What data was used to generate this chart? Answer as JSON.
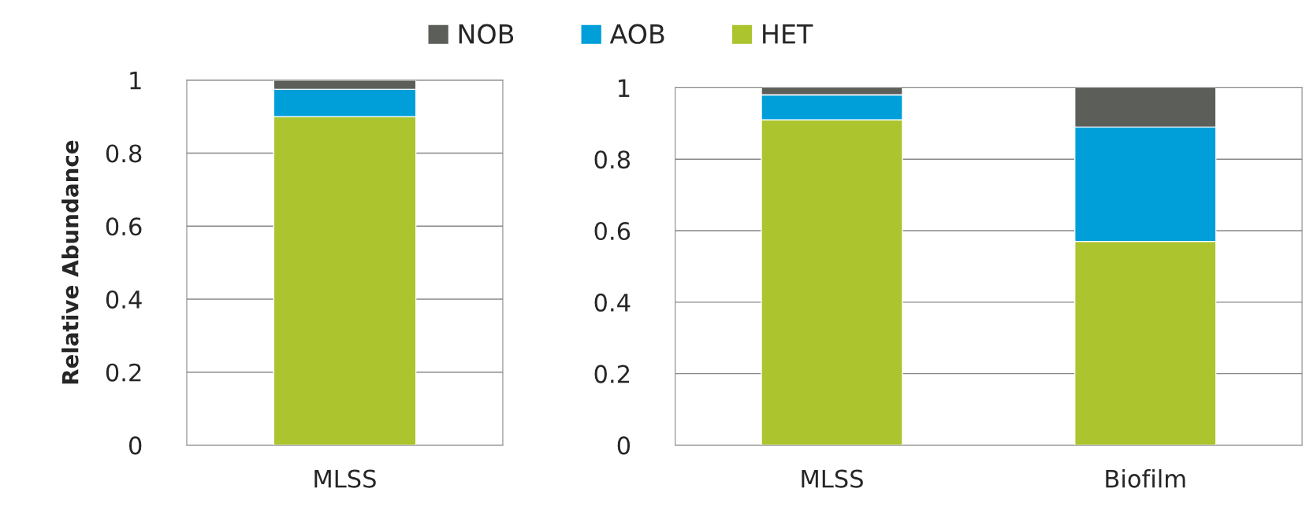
{
  "chart_data": [
    {
      "type": "bar",
      "stacked": true,
      "categories": [
        "MLSS"
      ],
      "ylabel": "Relative Abundance",
      "ylim": [
        0,
        1
      ],
      "yticks": [
        0,
        0.2,
        0.4,
        0.6,
        0.8,
        1
      ],
      "grid": "y",
      "legend": "top",
      "series": [
        {
          "name": "HET",
          "color": "#acc42e",
          "values": [
            0.9
          ]
        },
        {
          "name": "AOB",
          "color": "#009fd9",
          "values": [
            0.075
          ]
        },
        {
          "name": "NOB",
          "color": "#5c5e5a",
          "values": [
            0.025
          ]
        }
      ]
    },
    {
      "type": "bar",
      "stacked": true,
      "categories": [
        "MLSS",
        "Biofilm"
      ],
      "ylim": [
        0,
        1
      ],
      "yticks": [
        0,
        0.2,
        0.4,
        0.6,
        0.8,
        1
      ],
      "grid": "y",
      "series": [
        {
          "name": "HET",
          "color": "#acc42e",
          "values": [
            0.91,
            0.57
          ]
        },
        {
          "name": "AOB",
          "color": "#009fd9",
          "values": [
            0.07,
            0.32
          ]
        },
        {
          "name": "NOB",
          "color": "#5c5e5a",
          "values": [
            0.02,
            0.11
          ]
        }
      ]
    }
  ]
}
